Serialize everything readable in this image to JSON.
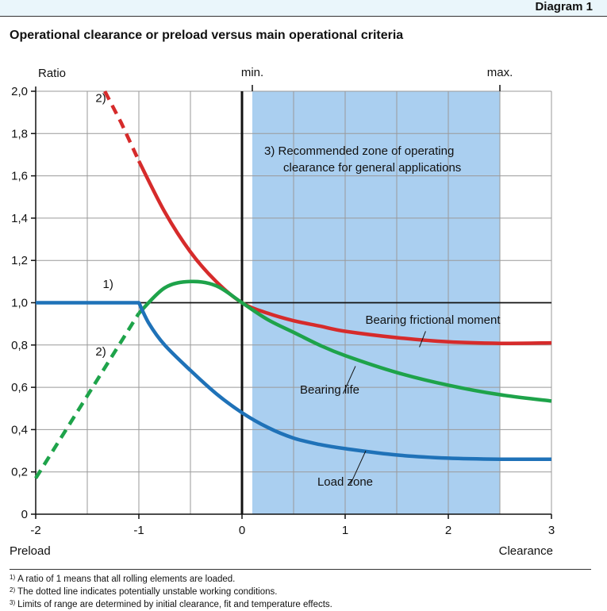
{
  "header": {
    "diagram_label": "Diagram 1",
    "subtitle": "Operational clearance or preload versus main operational criteria"
  },
  "footnotes": [
    {
      "mark": "1)",
      "text": "A ratio of 1 means that all rolling elements are loaded."
    },
    {
      "mark": "2)",
      "text": "The dotted line indicates potentially unstable working conditions."
    },
    {
      "mark": "3)",
      "text": "Limits of range are determined by initial clearance, fit and temperature effects."
    }
  ],
  "colors": {
    "zone": "#aacff0",
    "grid": "#9a9a9a",
    "frictional": "#d62b2b",
    "life": "#1ea34a",
    "load": "#1f72b8",
    "axis": "#111111"
  },
  "chart_data": {
    "type": "line",
    "title": "Operational clearance or preload versus main operational criteria",
    "ylabel": "Ratio",
    "xlabel_left": "Preload",
    "xlabel_right": "Clearance",
    "xlim": [
      -2,
      3
    ],
    "ylim": [
      0,
      2
    ],
    "x_ticks": [
      -2,
      -1,
      0,
      1,
      2,
      3
    ],
    "x_tick_labels": [
      "-2",
      "-1",
      "0",
      "1",
      "2",
      "3"
    ],
    "y_ticks": [
      0,
      0.2,
      0.4,
      0.6,
      0.8,
      1.0,
      1.2,
      1.4,
      1.6,
      1.8,
      2.0
    ],
    "y_tick_labels": [
      "0",
      "0,2",
      "0,4",
      "0,6",
      "0,8",
      "1,0",
      "1,2",
      "1,4",
      "1,6",
      "1,8",
      "2,0"
    ],
    "grid": true,
    "recommended_zone": {
      "x_range": [
        0.1,
        2.5
      ],
      "label": "3)  Recommended zone of operating clearance for general applications"
    },
    "markers": [
      {
        "label": "min.",
        "x": 0.1
      },
      {
        "label": "max.",
        "x": 2.5
      }
    ],
    "series": [
      {
        "name": "Bearing frictional moment",
        "color_key": "frictional",
        "unstable_x": [
          -1.33,
          -1.17,
          -1.0
        ],
        "unstable_y": [
          2.0,
          1.85,
          1.67
        ],
        "x": [
          -1.0,
          -0.75,
          -0.5,
          -0.25,
          0.0,
          0.25,
          0.5,
          0.75,
          1.0,
          1.5,
          2.0,
          2.5,
          3.0
        ],
        "y": [
          1.67,
          1.43,
          1.24,
          1.1,
          1.0,
          0.95,
          0.915,
          0.89,
          0.865,
          0.835,
          0.815,
          0.808,
          0.81
        ]
      },
      {
        "name": "Bearing life",
        "color_key": "life",
        "unstable_x": [
          -2.0,
          -1.5,
          -1.0
        ],
        "unstable_y": [
          0.17,
          0.56,
          0.95
        ],
        "x": [
          -1.0,
          -0.75,
          -0.5,
          -0.25,
          0.0,
          0.25,
          0.5,
          0.75,
          1.0,
          1.5,
          2.0,
          2.5,
          3.0
        ],
        "y": [
          0.95,
          1.07,
          1.1,
          1.08,
          1.0,
          0.92,
          0.86,
          0.8,
          0.75,
          0.67,
          0.61,
          0.565,
          0.535
        ]
      },
      {
        "name": "Load zone",
        "color_key": "load",
        "x": [
          -2.0,
          -1.0,
          -0.9,
          -0.75,
          -0.5,
          -0.25,
          0.0,
          0.25,
          0.5,
          0.75,
          1.0,
          1.5,
          2.0,
          2.5,
          3.0
        ],
        "y": [
          1.0,
          1.0,
          0.9,
          0.8,
          0.68,
          0.57,
          0.48,
          0.41,
          0.36,
          0.33,
          0.31,
          0.28,
          0.265,
          0.26,
          0.26
        ]
      }
    ],
    "annotations": [
      {
        "text": "1)",
        "x": -1.35,
        "y": 1.07
      },
      {
        "text": "2)",
        "x": -1.42,
        "y": 1.95
      },
      {
        "text": "2)",
        "x": -1.42,
        "y": 0.75
      },
      {
        "text": "Bearing frictional moment",
        "x": 1.85,
        "y": 0.9
      },
      {
        "text": "Bearing life",
        "x": 0.85,
        "y": 0.57
      },
      {
        "text": "Load zone",
        "x": 1.0,
        "y": 0.135
      }
    ]
  }
}
